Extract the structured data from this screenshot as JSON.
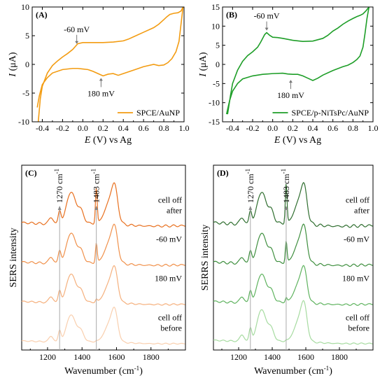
{
  "chart_data": [
    {
      "type": "line",
      "panel": "(A)",
      "xlabel_var": "E",
      "xlabel_rest": " (V) vs Ag",
      "ylabel_var": "I",
      "ylabel_rest": " (μA)",
      "xlim": [
        -0.5,
        1.0
      ],
      "ylim": [
        -10,
        10
      ],
      "xticks": [
        -0.4,
        -0.2,
        0.0,
        0.2,
        0.4,
        0.6,
        0.8,
        1.0
      ],
      "xtick_labels": [
        "-0.4",
        "-0.2",
        "0.0",
        "0.2",
        "0.4",
        "0.6",
        "0.8",
        "1.0"
      ],
      "yticks": [
        -10,
        -5,
        0,
        5,
        10
      ],
      "ytick_labels": [
        "-10",
        "-5",
        "0",
        "5",
        "10"
      ],
      "color": "#f39c12",
      "legend": "SPCE/AuNP",
      "legend_position": "lower-right",
      "annotations": [
        {
          "text": "-60 mV",
          "x": -0.06,
          "y": 3.2,
          "arrow": "down"
        },
        {
          "text": "180 mV",
          "x": 0.18,
          "y": -2.0,
          "arrow": "up"
        }
      ],
      "series": [
        {
          "x": [
            -0.44,
            -0.43,
            -0.42,
            -0.4,
            -0.35,
            -0.3,
            -0.25,
            -0.2,
            -0.15,
            -0.1,
            -0.07,
            -0.05,
            0.0,
            0.1,
            0.2,
            0.3,
            0.4,
            0.45,
            0.5,
            0.6,
            0.7,
            0.75,
            0.8,
            0.83,
            0.86,
            0.9,
            0.94,
            0.97,
            0.99
          ],
          "y": [
            -10.0,
            -8.0,
            -6.0,
            -3.8,
            -1.5,
            -0.2,
            0.6,
            1.3,
            1.9,
            2.6,
            3.2,
            3.6,
            3.8,
            3.8,
            3.8,
            3.9,
            4.1,
            4.4,
            4.8,
            5.6,
            6.4,
            7.0,
            7.8,
            8.3,
            8.7,
            8.9,
            9.0,
            9.3,
            10.0
          ]
        },
        {
          "x": [
            0.99,
            0.97,
            0.95,
            0.92,
            0.88,
            0.84,
            0.8,
            0.75,
            0.7,
            0.6,
            0.5,
            0.4,
            0.35,
            0.3,
            0.25,
            0.2,
            0.15,
            0.1,
            0.05,
            0.0,
            -0.05,
            -0.1,
            -0.2,
            -0.3,
            -0.35,
            -0.4,
            -0.43,
            -0.45
          ],
          "y": [
            10.0,
            7.0,
            4.0,
            2.2,
            1.0,
            0.3,
            -0.1,
            -0.2,
            0.0,
            -0.4,
            -1.0,
            -1.6,
            -1.9,
            -1.6,
            -1.7,
            -2.0,
            -1.6,
            -1.2,
            -0.9,
            -0.8,
            -0.7,
            -0.7,
            -0.9,
            -1.5,
            -2.3,
            -3.5,
            -5.5,
            -7.5
          ]
        }
      ]
    },
    {
      "type": "line",
      "panel": "(B)",
      "xlabel_var": "E",
      "xlabel_rest": " (V) vs Ag",
      "ylabel_var": "I",
      "ylabel_rest": " (μA)",
      "xlim": [
        -0.5,
        1.0
      ],
      "ylim": [
        -15,
        15
      ],
      "xticks": [
        -0.4,
        -0.2,
        0.0,
        0.2,
        0.4,
        0.6,
        0.8,
        1.0
      ],
      "xtick_labels": [
        "-0.4",
        "-0.2",
        "0.0",
        "0.2",
        "0.4",
        "0.6",
        "0.8",
        "1.0"
      ],
      "yticks": [
        -15,
        -10,
        -5,
        0,
        5,
        10,
        15
      ],
      "ytick_labels": [
        "-15",
        "-10",
        "-5",
        "0",
        "5",
        "10",
        "15"
      ],
      "color": "#1e9e28",
      "legend": "SPCE/p-NiTsPc/AuNP",
      "legend_position": "lower-right",
      "annotations": [
        {
          "text": "-60 mV",
          "x": -0.06,
          "y": 8.3,
          "arrow": "down"
        },
        {
          "text": "180 mV",
          "x": 0.18,
          "y": -3.5,
          "arrow": "up"
        }
      ],
      "series": [
        {
          "x": [
            -0.45,
            -0.42,
            -0.4,
            -0.35,
            -0.3,
            -0.25,
            -0.2,
            -0.15,
            -0.12,
            -0.08,
            -0.06,
            -0.03,
            0.0,
            0.05,
            0.1,
            0.2,
            0.3,
            0.4,
            0.5,
            0.55,
            0.6,
            0.65,
            0.7,
            0.75,
            0.8,
            0.84,
            0.87,
            0.9,
            0.93,
            0.96
          ],
          "y": [
            -13.0,
            -8.0,
            -5.0,
            -1.5,
            0.8,
            2.3,
            3.3,
            4.5,
            5.8,
            7.8,
            8.3,
            7.6,
            7.1,
            7.0,
            6.8,
            6.3,
            6.0,
            6.1,
            6.8,
            7.6,
            8.7,
            9.5,
            10.5,
            11.3,
            12.0,
            12.5,
            12.8,
            13.2,
            14.0,
            15.0
          ]
        },
        {
          "x": [
            0.96,
            0.94,
            0.92,
            0.9,
            0.87,
            0.84,
            0.8,
            0.75,
            0.7,
            0.6,
            0.5,
            0.45,
            0.4,
            0.35,
            0.3,
            0.25,
            0.2,
            0.15,
            0.1,
            0.0,
            -0.1,
            -0.2,
            -0.3,
            -0.35,
            -0.4,
            -0.43,
            -0.46
          ],
          "y": [
            15.0,
            12.0,
            8.0,
            4.5,
            2.2,
            1.3,
            0.5,
            -0.2,
            -0.6,
            -1.6,
            -2.8,
            -3.6,
            -4.2,
            -3.6,
            -3.0,
            -2.6,
            -2.6,
            -2.5,
            -2.3,
            -2.4,
            -2.6,
            -3.0,
            -3.8,
            -5.0,
            -7.0,
            -9.5,
            -13.0
          ]
        }
      ]
    },
    {
      "type": "line",
      "panel": "(C)",
      "xlabel": "Wavenumber (cm",
      "xlabel_sup": "-1",
      "xlabel_end": ")",
      "ylabel": "SERS intensity",
      "xlim": [
        1050,
        2000
      ],
      "xticks": [
        1200,
        1400,
        1600,
        1800
      ],
      "xtick_labels": [
        "1200",
        "1400",
        "1600",
        "1800"
      ],
      "y_tick_labels": false,
      "reference_lines": [
        {
          "x": 1270,
          "label": "1270 cm",
          "sup": "-1"
        },
        {
          "x": 1483,
          "label": "1483 cm",
          "sup": "-1"
        }
      ],
      "series": [
        {
          "name": "cell off after",
          "label_line1": "cell off",
          "label_line2": "after",
          "color": "#e8701f",
          "offset": 3
        },
        {
          "name": "-60 mV",
          "label_line1": "-60 mV",
          "label_line2": "",
          "color": "#f0904a",
          "offset": 2
        },
        {
          "name": "180 mV",
          "label_line1": "180 mV",
          "label_line2": "",
          "color": "#f5b07d",
          "offset": 1
        },
        {
          "name": "cell off before",
          "label_line1": "cell off",
          "label_line2": "before",
          "color": "#f9cfae",
          "offset": 0
        }
      ]
    },
    {
      "type": "line",
      "panel": "(D)",
      "xlabel": "Wavenumber (cm",
      "xlabel_sup": "-1",
      "xlabel_end": ")",
      "ylabel": "SERRS intensity",
      "xlim": [
        1050,
        2000
      ],
      "xticks": [
        1200,
        1400,
        1600,
        1800
      ],
      "xtick_labels": [
        "1200",
        "1400",
        "1600",
        "1800"
      ],
      "y_tick_labels": false,
      "reference_lines": [
        {
          "x": 1270,
          "label": "1270 cm",
          "sup": "-1"
        },
        {
          "x": 1483,
          "label": "1483 cm",
          "sup": "-1"
        }
      ],
      "series": [
        {
          "name": "cell off after",
          "label_line1": "cell off",
          "label_line2": "after",
          "color": "#2f6e2f",
          "offset": 3
        },
        {
          "name": "-60 mV",
          "label_line1": "-60 mV",
          "label_line2": "",
          "color": "#3f8f3f",
          "offset": 2
        },
        {
          "name": "180 mV",
          "label_line1": "180 mV",
          "label_line2": "",
          "color": "#5fb35f",
          "offset": 1
        },
        {
          "name": "cell off before",
          "label_line1": "cell off",
          "label_line2": "before",
          "color": "#a6dba0",
          "offset": 0
        }
      ]
    }
  ]
}
